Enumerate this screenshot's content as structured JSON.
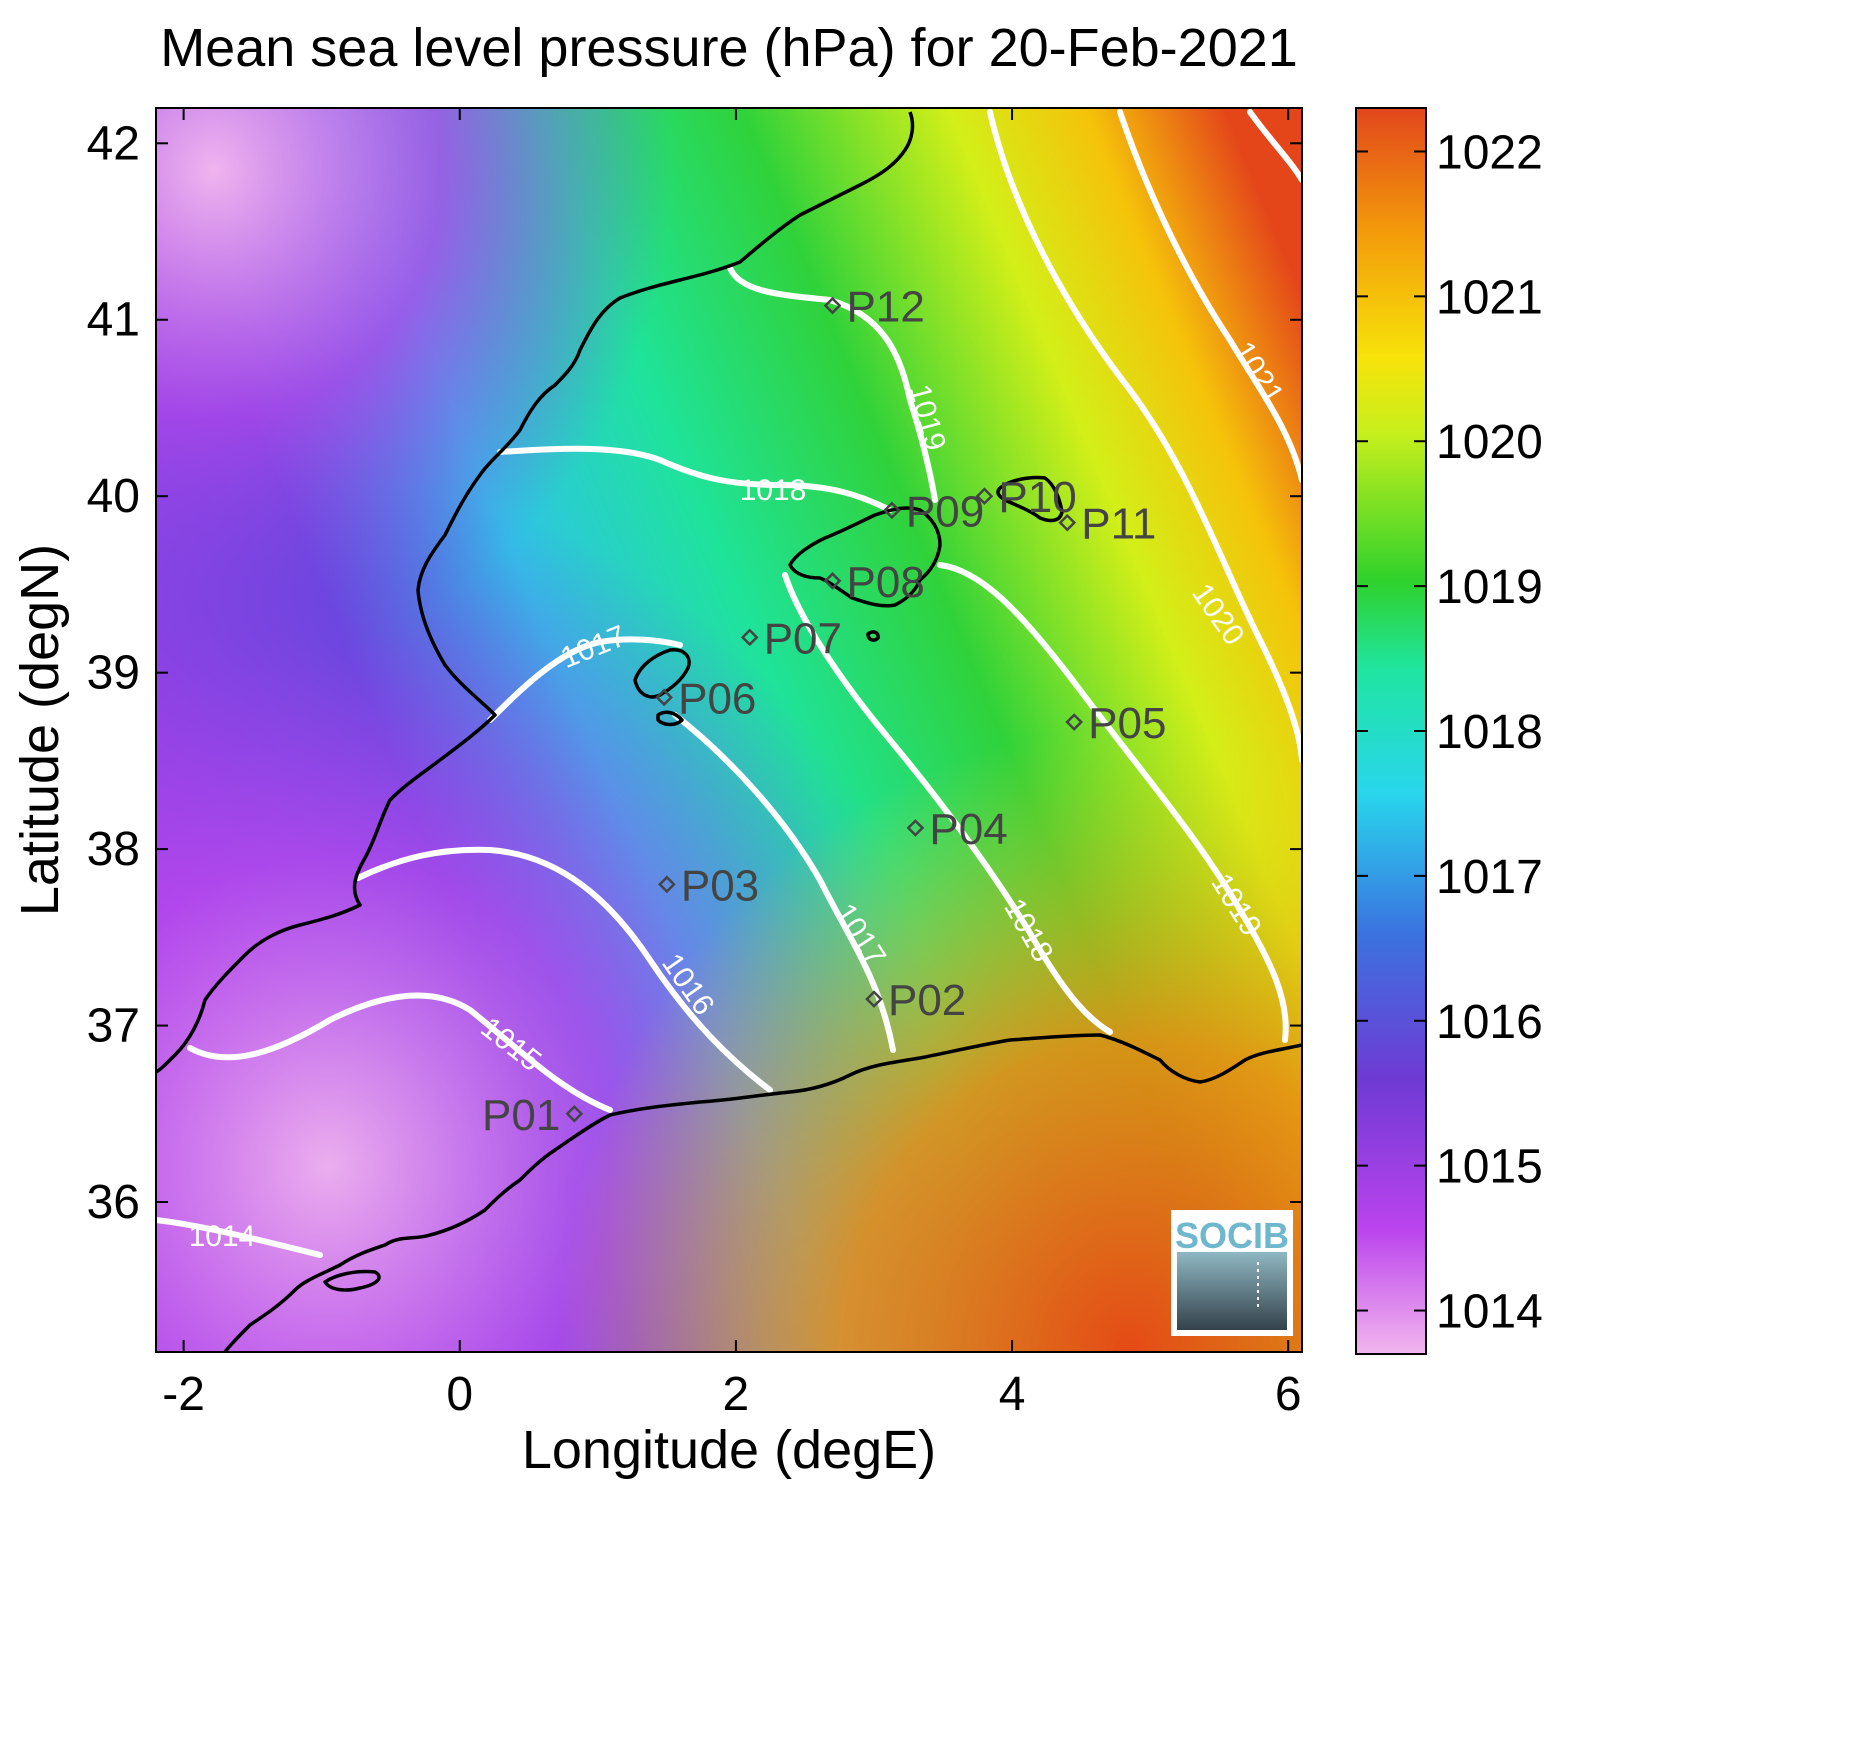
{
  "chart_data": {
    "type": "heatmap",
    "title": "Mean sea level pressure (hPa) for 20-Feb-2021",
    "xlabel": "Longitude (degE)",
    "ylabel": "Latitude (degN)",
    "xlim": [
      -2.2,
      6.1
    ],
    "ylim": [
      35.15,
      42.2
    ],
    "xticks": [
      -2,
      0,
      2,
      4,
      6
    ],
    "yticks": [
      36,
      37,
      38,
      39,
      40,
      41,
      42
    ],
    "colorbar": {
      "range": [
        1013.7,
        1022.3
      ],
      "ticks": [
        1014,
        1015,
        1016,
        1017,
        1018,
        1019,
        1020,
        1021,
        1022
      ],
      "colors": [
        "#f2b6ee",
        "#bb44ee",
        "#6f3ad4",
        "#3a74e0",
        "#29d6ec",
        "#1fe5a0",
        "#2fd12c",
        "#c8ef1c",
        "#f7e30a",
        "#f39b0a",
        "#e2461c"
      ]
    },
    "contour_labels": [
      "1014",
      "1015",
      "1016",
      "1017",
      "1017",
      "1018",
      "1018",
      "1019",
      "1019",
      "1020",
      "1021"
    ],
    "stations": [
      {
        "name": "P01",
        "lon": 0.83,
        "lat": 36.5
      },
      {
        "name": "P02",
        "lon": 3.0,
        "lat": 37.15
      },
      {
        "name": "P03",
        "lon": 1.5,
        "lat": 37.8
      },
      {
        "name": "P04",
        "lon": 3.3,
        "lat": 38.12
      },
      {
        "name": "P05",
        "lon": 4.45,
        "lat": 38.72
      },
      {
        "name": "P06",
        "lon": 1.48,
        "lat": 38.86
      },
      {
        "name": "P07",
        "lon": 2.1,
        "lat": 39.2
      },
      {
        "name": "P08",
        "lon": 2.7,
        "lat": 39.52
      },
      {
        "name": "P09",
        "lon": 3.13,
        "lat": 39.92
      },
      {
        "name": "P10",
        "lon": 3.8,
        "lat": 40.0
      },
      {
        "name": "P11",
        "lon": 4.4,
        "lat": 39.85
      },
      {
        "name": "P12",
        "lon": 2.7,
        "lat": 41.08
      }
    ]
  },
  "logo": {
    "text": "SOCIB"
  }
}
